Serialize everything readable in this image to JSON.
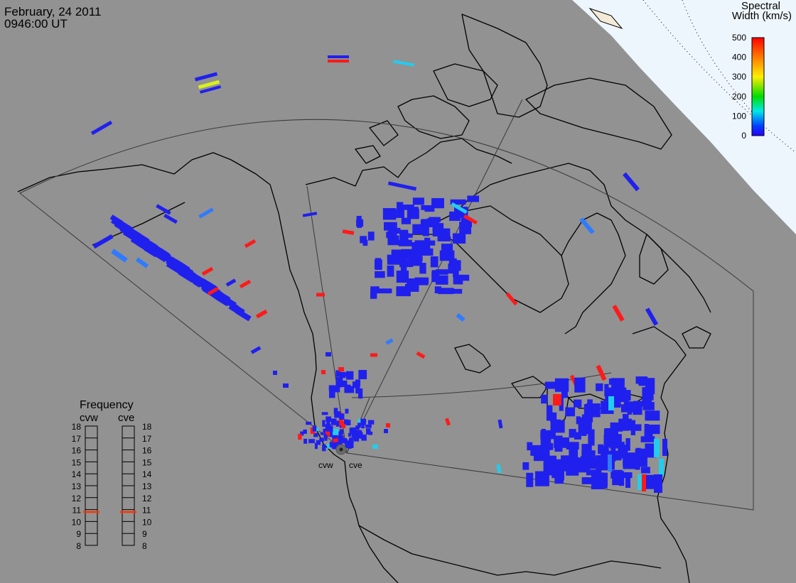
{
  "header": {
    "date": "February, 24 2011",
    "time": "0946:00 UT"
  },
  "colorbar": {
    "title_line1": "Spectral",
    "title_line2": "Width (km/s)",
    "ticks": [
      "500",
      "400",
      "300",
      "200",
      "100",
      "0"
    ],
    "stops": [
      "#ff0000",
      "#ff7a00",
      "#ffee00",
      "#00dd00",
      "#00e8e8",
      "#0040ff",
      "#2a00ff"
    ]
  },
  "frequency": {
    "title": "Frequency",
    "radars": [
      {
        "name": "cvw",
        "value_mhz": 10.8
      },
      {
        "name": "cve",
        "value_mhz": 10.8
      }
    ],
    "ticks": [
      "18",
      "17",
      "16",
      "15",
      "14",
      "13",
      "12",
      "11",
      "10",
      "9",
      "8"
    ],
    "marker_color": "#ff3300"
  },
  "stations": [
    {
      "label": "cvw"
    },
    {
      "label": "cve"
    }
  ],
  "colors": {
    "background": "#929292",
    "arctic": "#eef6fd",
    "coast": "#000000",
    "fov": "#3a3a3a",
    "scatter_low": "#2020ee",
    "scatter_mid": "#2f7bff",
    "scatter_cyan": "#22ccee",
    "scatter_high": "#ff1a1a",
    "scatter_yellow": "#d8f020"
  }
}
